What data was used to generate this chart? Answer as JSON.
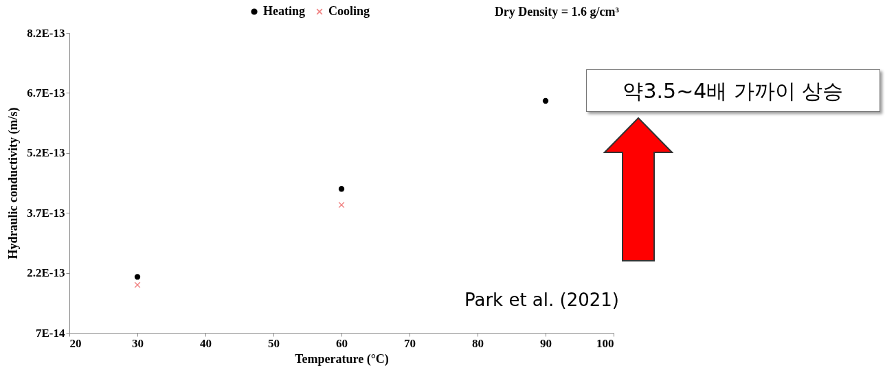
{
  "chart_data": {
    "type": "scatter",
    "xlabel": "Temperature (°C)",
    "ylabel": "Hydraulic conductivity (m/s)",
    "x": [
      30,
      60,
      90
    ],
    "series": [
      {
        "name": "Heating",
        "color": "#000000",
        "marker": "circle",
        "values": [
          2.1e-13,
          4.3e-13,
          6.5e-13
        ]
      },
      {
        "name": "Cooling",
        "color": "#f08080",
        "marker": "cross",
        "values": [
          1.9e-13,
          3.9e-13,
          null
        ]
      }
    ],
    "xlim": [
      20,
      100
    ],
    "xticks": [
      20,
      30,
      40,
      50,
      60,
      70,
      80,
      90,
      100
    ],
    "ylim": [
      7e-14,
      8.2e-13
    ],
    "yticks": [
      {
        "value": 7e-14,
        "label": "7E-14"
      },
      {
        "value": 2.2e-13,
        "label": "2.2E-13"
      },
      {
        "value": 3.7e-13,
        "label": "3.7E-13"
      },
      {
        "value": 5.2e-13,
        "label": "5.2E-13"
      },
      {
        "value": 6.7e-13,
        "label": "6.7E-13"
      },
      {
        "value": 8.2e-13,
        "label": "8.2E-13"
      }
    ],
    "grid": false,
    "legend": "top",
    "annotations": [
      "Dry Density = 1.6 g/cm³",
      "약3.5~4배 가까이 상승",
      "Park et al. (2021)"
    ]
  }
}
